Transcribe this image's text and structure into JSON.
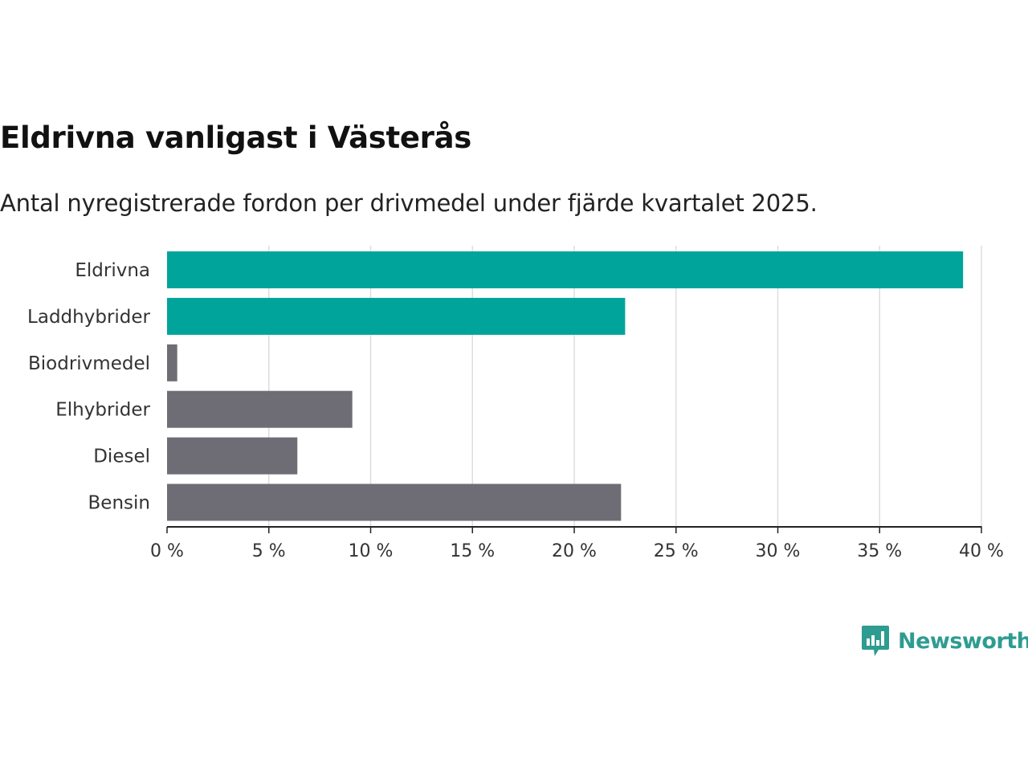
{
  "colors": {
    "highlight": "#00a49a",
    "neutral": "#6e6d75",
    "grid": "#dddddd",
    "axis": "#222222",
    "brand": "#2e9c90"
  },
  "brand": {
    "name": "Newsworthy",
    "icon": "newsworthy-logo-icon"
  },
  "chart_data": {
    "type": "bar",
    "orientation": "horizontal",
    "title": "Eldrivna vanligast i Västerås",
    "subtitle": "Antal nyregistrerade fordon per drivmedel under fjärde kvartalet 2025.",
    "categories": [
      "Eldrivna",
      "Laddhybrider",
      "Biodrivmedel",
      "Elhybrider",
      "Diesel",
      "Bensin"
    ],
    "values": [
      39.1,
      22.5,
      0.5,
      9.1,
      6.4,
      22.3
    ],
    "highlighted": [
      true,
      true,
      false,
      false,
      false,
      false
    ],
    "xlim": [
      0,
      40
    ],
    "xticks": [
      0,
      5,
      10,
      15,
      20,
      25,
      30,
      35,
      40
    ],
    "tick_suffix": " %",
    "xlabel": "",
    "ylabel": "",
    "grid": true,
    "legend": "none"
  }
}
